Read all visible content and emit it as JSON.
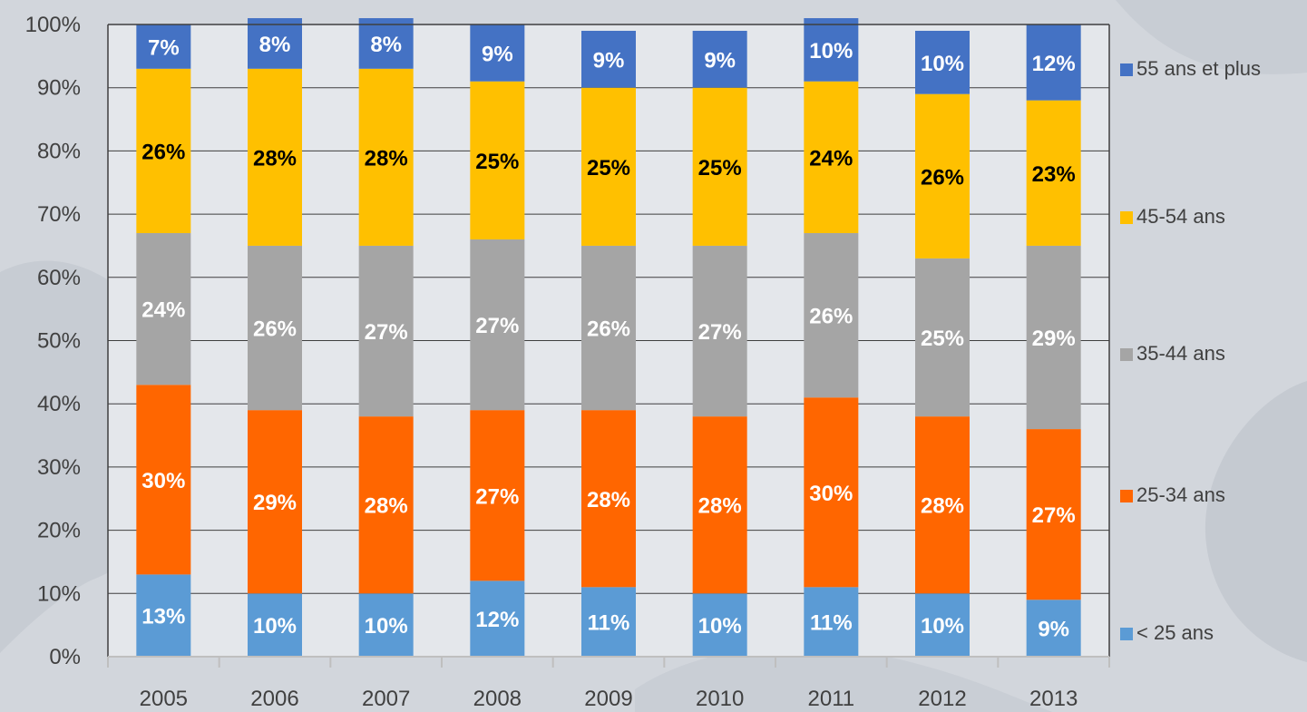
{
  "chart_data": {
    "type": "bar",
    "stacked": true,
    "categories": [
      "2005",
      "2006",
      "2007",
      "2008",
      "2009",
      "2010",
      "2011",
      "2012",
      "2013"
    ],
    "series": [
      {
        "name": "< 25 ans",
        "color": "#5b9bd5",
        "label_color": "#ffffff",
        "values": [
          13,
          10,
          10,
          12,
          11,
          10,
          11,
          10,
          9
        ],
        "labels": [
          "13%",
          "10%",
          "10%",
          "12%",
          "11%",
          "10%",
          "11%",
          "10%",
          "9%"
        ]
      },
      {
        "name": "25-34 ans",
        "color": "#ff6600",
        "label_color": "#ffffff",
        "values": [
          30,
          29,
          28,
          27,
          28,
          28,
          30,
          28,
          27
        ],
        "labels": [
          "30%",
          "29%",
          "28%",
          "27%",
          "28%",
          "28%",
          "30%",
          "28%",
          "27%"
        ]
      },
      {
        "name": "35-44 ans",
        "color": "#a5a5a5",
        "label_color": "#ffffff",
        "values": [
          24,
          26,
          27,
          27,
          26,
          27,
          26,
          25,
          29
        ],
        "labels": [
          "24%",
          "26%",
          "27%",
          "27%",
          "26%",
          "27%",
          "26%",
          "25%",
          "29%"
        ]
      },
      {
        "name": "45-54 ans",
        "color": "#ffc000",
        "label_color": "#000000",
        "values": [
          26,
          28,
          28,
          25,
          25,
          25,
          24,
          26,
          23
        ],
        "labels": [
          "26%",
          "28%",
          "28%",
          "25%",
          "25%",
          "25%",
          "24%",
          "26%",
          "23%"
        ]
      },
      {
        "name": "55 ans et plus",
        "color": "#4472c4",
        "label_color": "#ffffff",
        "values": [
          7,
          8,
          8,
          9,
          9,
          9,
          10,
          10,
          12
        ],
        "labels": [
          "7%",
          "8%",
          "8%",
          "9%",
          "9%",
          "9%",
          "10%",
          "10%",
          "12%"
        ]
      }
    ],
    "ylim": [
      0,
      100
    ],
    "yticks": [
      "0%",
      "10%",
      "20%",
      "30%",
      "40%",
      "50%",
      "60%",
      "70%",
      "80%",
      "90%",
      "100%"
    ],
    "grid": true,
    "legend": "right",
    "title": "",
    "xlabel": "",
    "ylabel": ""
  }
}
